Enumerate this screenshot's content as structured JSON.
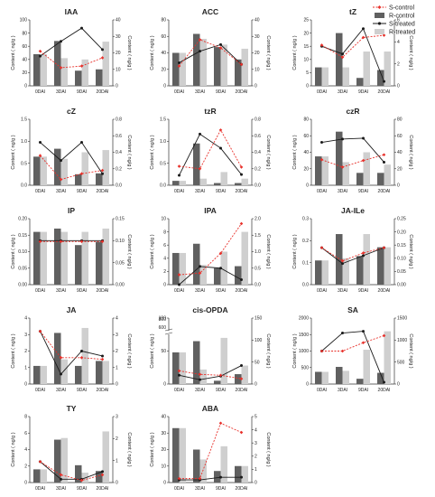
{
  "figure": {
    "y_label_left": "Content ( ng/g )",
    "y_label_right": "Content ( ng/g )",
    "colors": {
      "S_control": "#e8312b",
      "R_control": "#606060",
      "S_treated": "#1a1a1a",
      "R_treated": "#cfcfcf"
    }
  },
  "legend": [
    {
      "label": "S-control",
      "kind": "line-dash",
      "color": "#e8312b"
    },
    {
      "label": "R-control",
      "kind": "bar",
      "color": "#606060"
    },
    {
      "label": "S-treated",
      "kind": "line",
      "color": "#1a1a1a"
    },
    {
      "label": "R-treated",
      "kind": "bar",
      "color": "#cfcfcf"
    }
  ],
  "chart_data": [
    {
      "type": "bar",
      "title": "IAA",
      "categories": [
        "0DAI",
        "3DAI",
        "9DAI",
        "20DAI"
      ],
      "y_left": {
        "range": [
          0,
          100
        ],
        "ticks": [
          "0",
          "20",
          "40",
          "60",
          "80",
          "100"
        ]
      },
      "y_right": {
        "range": [
          0,
          40
        ],
        "ticks": [
          "0",
          "10",
          "20",
          "30",
          "40"
        ]
      },
      "series": [
        {
          "name": "R-control",
          "kind": "bar",
          "axis": "left",
          "values": [
            48,
            68,
            23,
            25
          ]
        },
        {
          "name": "R-treated",
          "kind": "bar",
          "axis": "left",
          "values": [
            48,
            42,
            40,
            67
          ]
        },
        {
          "name": "S-control",
          "kind": "line",
          "axis": "right",
          "values": [
            21,
            11,
            12,
            17
          ]
        },
        {
          "name": "S-treated",
          "kind": "line",
          "axis": "right",
          "values": [
            18,
            27,
            35,
            22
          ]
        }
      ]
    },
    {
      "type": "bar",
      "title": "ACC",
      "categories": [
        "0DAI",
        "3DAI",
        "9DAI",
        "20DAI"
      ],
      "y_left": {
        "range": [
          0,
          80
        ],
        "ticks": [
          "0",
          "20",
          "40",
          "60",
          "80"
        ]
      },
      "y_right": {
        "range": [
          0,
          40
        ],
        "ticks": [
          "0",
          "10",
          "20",
          "30",
          "40"
        ]
      },
      "series": [
        {
          "name": "R-control",
          "kind": "bar",
          "axis": "left",
          "values": [
            40,
            63,
            47,
            32
          ]
        },
        {
          "name": "R-treated",
          "kind": "bar",
          "axis": "left",
          "values": [
            40,
            57,
            50,
            45
          ]
        },
        {
          "name": "S-control",
          "kind": "line",
          "axis": "right",
          "values": [
            12,
            28,
            23,
            13
          ]
        },
        {
          "name": "S-treated",
          "kind": "line",
          "axis": "right",
          "values": [
            14,
            21,
            25,
            13
          ]
        }
      ]
    },
    {
      "type": "bar",
      "title": "tZ",
      "categories": [
        "0DAI",
        "3DAI",
        "9DAI",
        "20DAI"
      ],
      "y_left": {
        "range": [
          0,
          25
        ],
        "ticks": [
          "0",
          "5",
          "10",
          "15",
          "20",
          "25"
        ]
      },
      "y_right": {
        "range": [
          0,
          6
        ],
        "ticks": [
          "0",
          "2",
          "4",
          "6"
        ]
      },
      "series": [
        {
          "name": "R-control",
          "kind": "bar",
          "axis": "left",
          "values": [
            7,
            20,
            3,
            6
          ]
        },
        {
          "name": "R-treated",
          "kind": "bar",
          "axis": "left",
          "values": [
            7,
            7,
            13,
            13
          ]
        },
        {
          "name": "S-control",
          "kind": "line",
          "axis": "right",
          "values": [
            3.7,
            2.6,
            4.4,
            4.6
          ]
        },
        {
          "name": "S-treated",
          "kind": "line",
          "axis": "right",
          "values": [
            3.6,
            2.9,
            5.2,
            0.4
          ]
        }
      ]
    },
    {
      "type": "bar",
      "title": "cZ",
      "categories": [
        "0DAI",
        "3DAI",
        "9DAI",
        "20DAI"
      ],
      "y_left": {
        "range": [
          0,
          1.5
        ],
        "ticks": [
          "0.0",
          "0.5",
          "1.0",
          "1.5"
        ]
      },
      "y_right": {
        "range": [
          0,
          0.8
        ],
        "ticks": [
          "0.0",
          "0.2",
          "0.4",
          "0.6",
          "0.8"
        ]
      },
      "series": [
        {
          "name": "R-control",
          "kind": "bar",
          "axis": "left",
          "values": [
            0.65,
            0.83,
            0.25,
            0.27
          ]
        },
        {
          "name": "R-treated",
          "kind": "bar",
          "axis": "left",
          "values": [
            0.65,
            0.6,
            0.75,
            0.8
          ]
        },
        {
          "name": "S-control",
          "kind": "line",
          "axis": "right",
          "values": [
            0.36,
            0.07,
            0.14,
            0.18
          ]
        },
        {
          "name": "S-treated",
          "kind": "line",
          "axis": "right",
          "values": [
            0.52,
            0.3,
            0.52,
            0.14
          ]
        }
      ]
    },
    {
      "type": "bar",
      "title": "tzR",
      "categories": [
        "0DAI",
        "3DAI",
        "9DAI",
        "20DAI"
      ],
      "y_left": {
        "range": [
          0,
          1.5
        ],
        "ticks": [
          "0.0",
          "0.5",
          "1.0",
          "1.5"
        ]
      },
      "y_right": {
        "range": [
          0,
          0.8
        ],
        "ticks": [
          "0.0",
          "0.2",
          "0.4",
          "0.6",
          "0.8"
        ]
      },
      "series": [
        {
          "name": "R-control",
          "kind": "bar",
          "axis": "left",
          "values": [
            0.1,
            0.95,
            0.05,
            0.05
          ]
        },
        {
          "name": "R-treated",
          "kind": "bar",
          "axis": "left",
          "values": [
            0.1,
            0.15,
            0.3,
            0.15
          ]
        },
        {
          "name": "S-control",
          "kind": "line",
          "axis": "right",
          "values": [
            0.23,
            0.2,
            0.67,
            0.22
          ]
        },
        {
          "name": "S-treated",
          "kind": "line",
          "axis": "right",
          "values": [
            0.12,
            0.62,
            0.45,
            0.13
          ]
        }
      ]
    },
    {
      "type": "bar",
      "title": "czR",
      "categories": [
        "0DAI",
        "3DAI",
        "9DAI",
        "20DAI"
      ],
      "y_left": {
        "range": [
          0,
          80
        ],
        "ticks": [
          "0",
          "20",
          "40",
          "60",
          "80"
        ]
      },
      "y_right": {
        "range": [
          0,
          80
        ],
        "ticks": [
          "0",
          "20",
          "40",
          "60",
          "80"
        ]
      },
      "series": [
        {
          "name": "R-control",
          "kind": "bar",
          "axis": "left",
          "values": [
            35,
            65,
            15,
            15
          ]
        },
        {
          "name": "R-treated",
          "kind": "bar",
          "axis": "left",
          "values": [
            35,
            28,
            40,
            25
          ]
        },
        {
          "name": "S-control",
          "kind": "line",
          "axis": "right",
          "values": [
            31,
            22,
            30,
            37
          ]
        },
        {
          "name": "S-treated",
          "kind": "line",
          "axis": "right",
          "values": [
            52,
            56,
            57,
            28
          ]
        }
      ]
    },
    {
      "type": "bar",
      "title": "IP",
      "categories": [
        "0DAI",
        "3DAI",
        "9DAI",
        "20DAI"
      ],
      "y_left": {
        "range": [
          0,
          0.2
        ],
        "ticks": [
          "0.00",
          "0.05",
          "0.10",
          "0.15",
          "0.20"
        ]
      },
      "y_right": {
        "range": [
          0,
          0.15
        ],
        "ticks": [
          "0.00",
          "0.05",
          "0.10",
          "0.15"
        ]
      },
      "series": [
        {
          "name": "R-control",
          "kind": "bar",
          "axis": "left",
          "values": [
            0.16,
            0.17,
            0.12,
            0.13
          ]
        },
        {
          "name": "R-treated",
          "kind": "bar",
          "axis": "left",
          "values": [
            0.16,
            0.16,
            0.16,
            0.17
          ]
        },
        {
          "name": "S-control",
          "kind": "line",
          "axis": "right",
          "values": [
            0.098,
            0.098,
            0.098,
            0.098
          ]
        },
        {
          "name": "S-treated",
          "kind": "line",
          "axis": "right",
          "values": [
            0.1,
            0.1,
            0.1,
            0.1
          ]
        }
      ]
    },
    {
      "type": "bar",
      "title": "IPA",
      "categories": [
        "0DAI",
        "3DAI",
        "9DAI",
        "20DAI"
      ],
      "y_left": {
        "range": [
          0,
          10
        ],
        "ticks": [
          "0",
          "2",
          "4",
          "6",
          "8",
          "10"
        ]
      },
      "y_right": {
        "range": [
          0,
          2
        ],
        "ticks": [
          "0.0",
          "0.5",
          "1.0",
          "1.5",
          "2.0"
        ]
      },
      "series": [
        {
          "name": "R-control",
          "kind": "bar",
          "axis": "left",
          "values": [
            4.8,
            6.2,
            2.5,
            2.8
          ]
        },
        {
          "name": "R-treated",
          "kind": "bar",
          "axis": "left",
          "values": [
            4.8,
            3.0,
            5.0,
            8.0
          ]
        },
        {
          "name": "S-control",
          "kind": "line",
          "axis": "right",
          "values": [
            0.3,
            0.35,
            0.95,
            1.85
          ]
        },
        {
          "name": "S-treated",
          "kind": "line",
          "axis": "right",
          "values": [
            0.0,
            0.55,
            0.5,
            0.15
          ]
        }
      ]
    },
    {
      "type": "bar",
      "title": "JA-ILe",
      "categories": [
        "0DAI",
        "3DAI",
        "9DAI",
        "20DAI"
      ],
      "y_left": {
        "range": [
          0,
          0.3
        ],
        "ticks": [
          "0.0",
          "0.1",
          "0.2",
          "0.3"
        ]
      },
      "y_right": {
        "range": [
          0,
          0.25
        ],
        "ticks": [
          "0.00",
          "0.05",
          "0.10",
          "0.15",
          "0.20",
          "0.25"
        ]
      },
      "series": [
        {
          "name": "R-control",
          "kind": "bar",
          "axis": "left",
          "values": [
            0.11,
            0.23,
            0.13,
            0.17
          ]
        },
        {
          "name": "R-treated",
          "kind": "bar",
          "axis": "left",
          "values": [
            0.11,
            0.12,
            0.23,
            0.17
          ]
        },
        {
          "name": "S-control",
          "kind": "line",
          "axis": "right",
          "values": [
            0.14,
            0.09,
            0.12,
            0.14
          ]
        },
        {
          "name": "S-treated",
          "kind": "line",
          "axis": "right",
          "values": [
            0.14,
            0.08,
            0.11,
            0.14
          ]
        }
      ]
    },
    {
      "type": "bar",
      "title": "JA",
      "categories": [
        "0DAI",
        "3DAI",
        "9DAI",
        "20DAI"
      ],
      "y_left": {
        "range": [
          0,
          4
        ],
        "ticks": [
          "0",
          "1",
          "2",
          "3",
          "4"
        ]
      },
      "y_right": {
        "range": [
          0,
          4
        ],
        "ticks": [
          "0",
          "1",
          "2",
          "3",
          "4"
        ]
      },
      "series": [
        {
          "name": "R-control",
          "kind": "bar",
          "axis": "left",
          "values": [
            1.1,
            3.1,
            1.1,
            1.4
          ]
        },
        {
          "name": "R-treated",
          "kind": "bar",
          "axis": "left",
          "values": [
            1.1,
            1.5,
            3.4,
            1.4
          ]
        },
        {
          "name": "S-control",
          "kind": "line",
          "axis": "right",
          "values": [
            3.2,
            1.6,
            1.6,
            1.5
          ]
        },
        {
          "name": "S-treated",
          "kind": "line",
          "axis": "right",
          "values": [
            3.2,
            0.6,
            2.0,
            1.7
          ]
        }
      ]
    },
    {
      "type": "bar",
      "title": "cis-OPDA",
      "categories": [
        "0DAI",
        "3DAI",
        "9DAI",
        "20DAI"
      ],
      "y_left": {
        "range": [
          0,
          100
        ],
        "ticks": [
          "0",
          "50",
          "100"
        ],
        "break": "600-800 (break shown)",
        "upper_ticks": [
          "600",
          "800"
        ]
      },
      "y_right": {
        "range": [
          0,
          150
        ],
        "ticks": [
          "0",
          "50",
          "100",
          "150"
        ]
      },
      "series": [
        {
          "name": "R-control",
          "kind": "bar",
          "axis": "left",
          "values": [
            48,
            65,
            5,
            15
          ]
        },
        {
          "name": "R-treated",
          "kind": "bar",
          "axis": "left",
          "values": [
            48,
            22,
            70,
            28
          ]
        },
        {
          "name": "S-control",
          "kind": "line",
          "axis": "right",
          "values": [
            30,
            22,
            20,
            12
          ]
        },
        {
          "name": "S-treated",
          "kind": "line",
          "axis": "right",
          "values": [
            20,
            10,
            18,
            42
          ]
        }
      ]
    },
    {
      "type": "bar",
      "title": "SA",
      "categories": [
        "0DAI",
        "3DAI",
        "9DAI",
        "20DAI"
      ],
      "y_left": {
        "range": [
          0,
          2000
        ],
        "ticks": [
          "0",
          "500",
          "1000",
          "1500",
          "2000"
        ]
      },
      "y_right": {
        "range": [
          0,
          1500
        ],
        "ticks": [
          "0",
          "500",
          "1000",
          "1500"
        ]
      },
      "series": [
        {
          "name": "R-control",
          "kind": "bar",
          "axis": "left",
          "values": [
            370,
            520,
            160,
            340
          ]
        },
        {
          "name": "R-treated",
          "kind": "bar",
          "axis": "left",
          "values": [
            370,
            400,
            1040,
            1600
          ]
        },
        {
          "name": "S-control",
          "kind": "line",
          "axis": "right",
          "values": [
            750,
            750,
            940,
            1100
          ]
        },
        {
          "name": "S-treated",
          "kind": "line",
          "axis": "right",
          "values": [
            750,
            1160,
            1200,
            40
          ]
        }
      ]
    },
    {
      "type": "bar",
      "title": "TY",
      "categories": [
        "0DAI",
        "3DAI",
        "9DAI",
        "20DAI"
      ],
      "y_left": {
        "range": [
          0,
          8
        ],
        "ticks": [
          "0",
          "2",
          "4",
          "6",
          "8"
        ]
      },
      "y_right": {
        "range": [
          0,
          3
        ],
        "ticks": [
          "0",
          "1",
          "2",
          "3"
        ]
      },
      "series": [
        {
          "name": "R-control",
          "kind": "bar",
          "axis": "left",
          "values": [
            1.6,
            5.2,
            2.1,
            1.4
          ]
        },
        {
          "name": "R-treated",
          "kind": "bar",
          "axis": "left",
          "values": [
            1.6,
            5.4,
            1.2,
            6.2
          ]
        },
        {
          "name": "S-control",
          "kind": "line",
          "axis": "right",
          "values": [
            0.95,
            0.35,
            0.1,
            0.35
          ]
        },
        {
          "name": "S-treated",
          "kind": "line",
          "axis": "right",
          "values": [
            0.95,
            0.15,
            0.15,
            0.5
          ]
        }
      ]
    },
    {
      "type": "bar",
      "title": "ABA",
      "categories": [
        "0DAI",
        "3DAI",
        "9DAI",
        "20DAI"
      ],
      "y_left": {
        "range": [
          0,
          40
        ],
        "ticks": [
          "0",
          "10",
          "20",
          "30",
          "40"
        ]
      },
      "y_right": {
        "range": [
          0,
          5
        ],
        "ticks": [
          "0",
          "1",
          "2",
          "3",
          "4",
          "5"
        ]
      },
      "series": [
        {
          "name": "R-control",
          "kind": "bar",
          "axis": "left",
          "values": [
            33,
            20,
            7,
            10
          ]
        },
        {
          "name": "R-treated",
          "kind": "bar",
          "axis": "left",
          "values": [
            33,
            14,
            22,
            10
          ]
        },
        {
          "name": "S-control",
          "kind": "line",
          "axis": "right",
          "values": [
            0.3,
            0.3,
            4.5,
            3.8
          ]
        },
        {
          "name": "S-treated",
          "kind": "line",
          "axis": "right",
          "values": [
            0.2,
            0.2,
            0.4,
            0.4
          ]
        }
      ]
    }
  ]
}
